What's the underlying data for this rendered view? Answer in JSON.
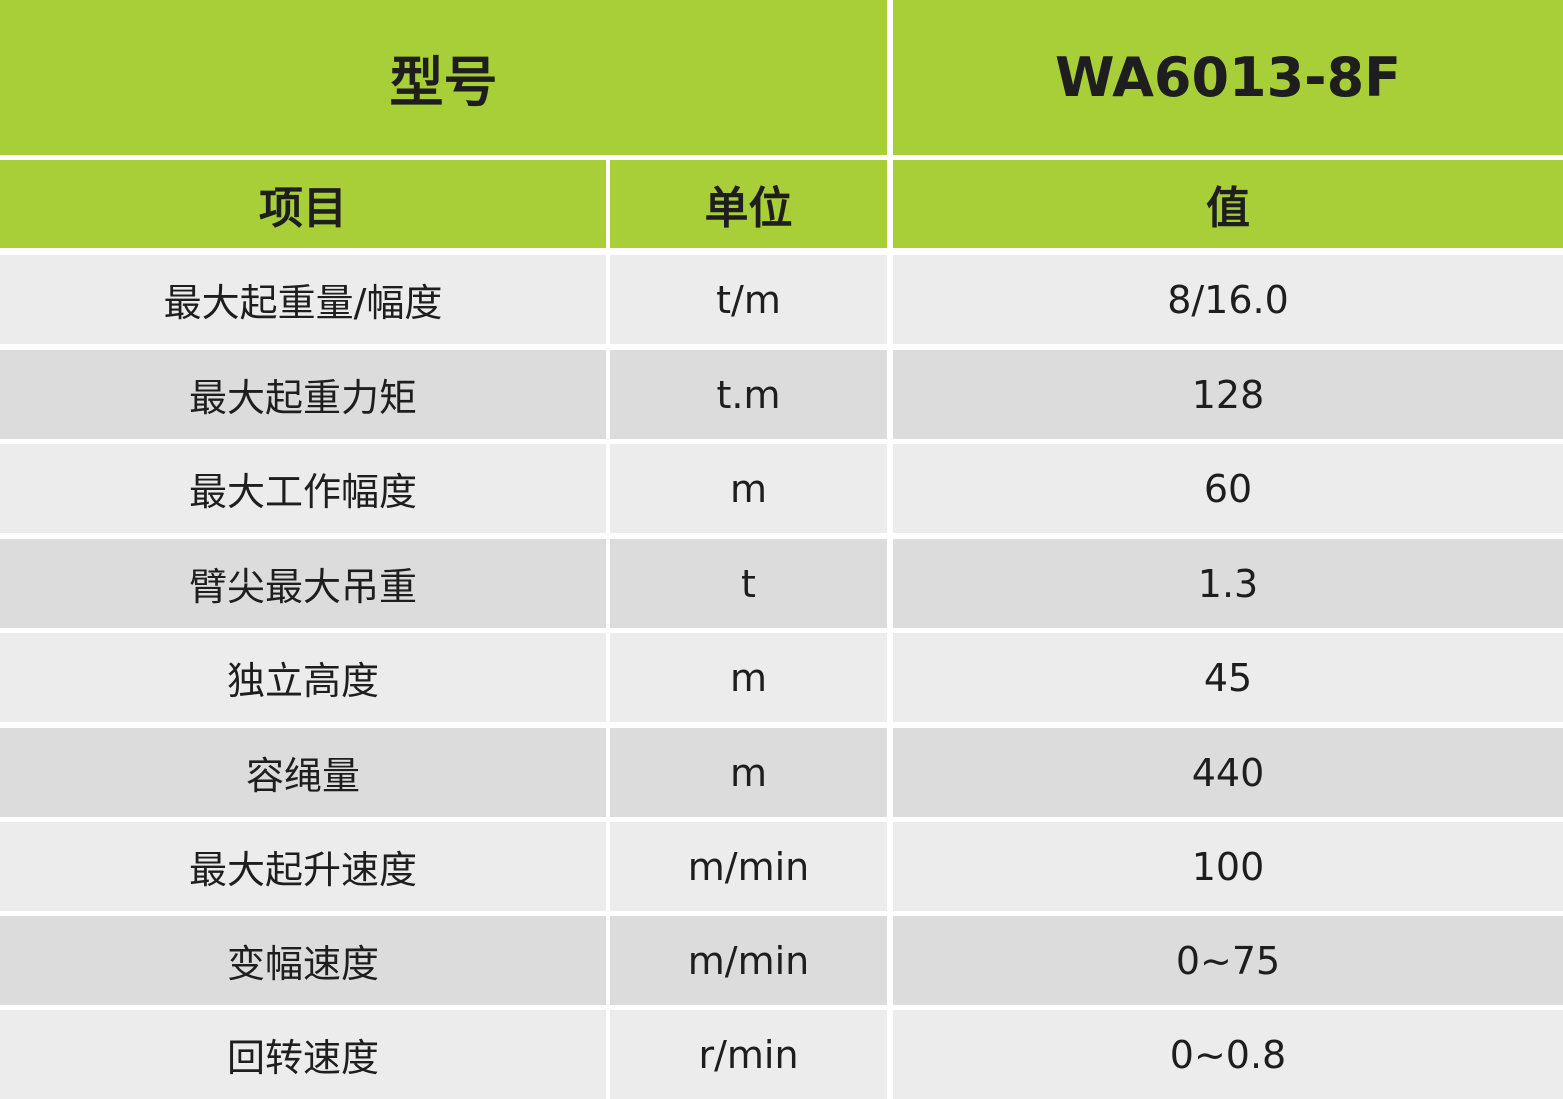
{
  "table": {
    "title": {
      "label": "型号",
      "model": "WA6013-8F"
    },
    "header": [
      "项目",
      "单位",
      "值"
    ],
    "rows": [
      [
        "最大起重量/幅度",
        "t/m",
        "8/16.0"
      ],
      [
        "最大起重力矩",
        "t.m",
        128
      ],
      [
        "最大工作幅度",
        "m",
        60
      ],
      [
        "臂尖最大吊重",
        "t",
        1.3
      ],
      [
        "独立高度",
        "m",
        45
      ],
      [
        "容绳量",
        "m",
        440
      ],
      [
        "最大起升速度",
        "m/min",
        100
      ],
      [
        "变幅速度",
        "m/min",
        "0~75"
      ],
      [
        "回转速度",
        "r/min",
        "0~0.8"
      ]
    ]
  }
}
